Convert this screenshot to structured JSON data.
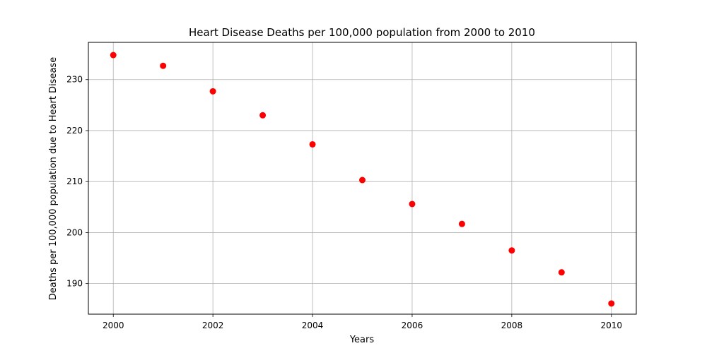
{
  "chart_data": {
    "type": "scatter",
    "title": "Heart Disease Deaths per 100,000 population from 2000 to 2010",
    "xlabel": "Years",
    "ylabel": "Deaths per 100,000 population due to Heart Disease",
    "x": [
      2000,
      2001,
      2002,
      2003,
      2004,
      2005,
      2006,
      2007,
      2008,
      2009,
      2010
    ],
    "y": [
      234.8,
      232.7,
      227.7,
      223.0,
      217.3,
      210.3,
      205.6,
      201.7,
      196.5,
      192.2,
      186.1
    ],
    "xlim": [
      1999.5,
      2010.5
    ],
    "ylim": [
      184.0,
      237.3
    ],
    "xticks": [
      2000,
      2002,
      2004,
      2006,
      2008,
      2010
    ],
    "yticks": [
      190,
      200,
      210,
      220,
      230
    ],
    "grid": true,
    "marker_color": "#ff0000"
  }
}
